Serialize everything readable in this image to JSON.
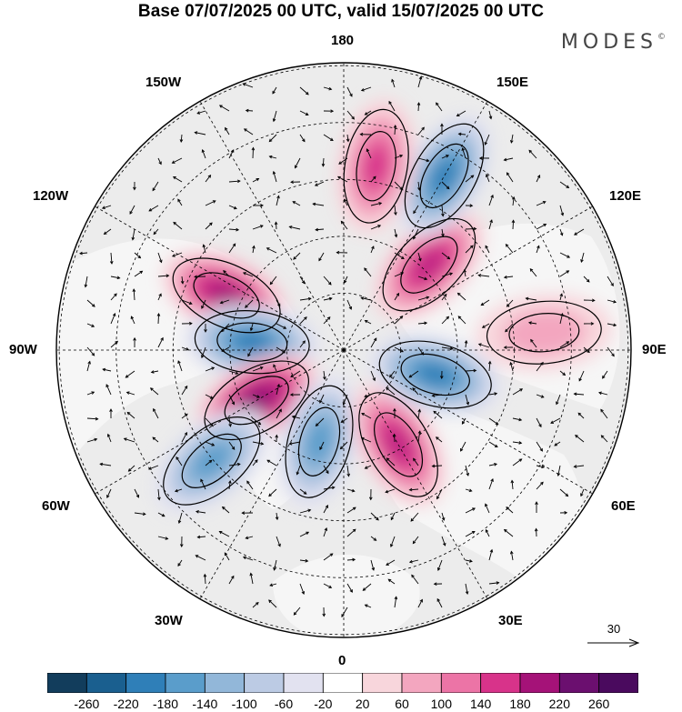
{
  "title": "Base 07/07/2025 00 UTC, valid 15/07/2025 00 UTC",
  "brand": "MODES",
  "brand_mark": "©",
  "longitude_labels": {
    "top": "180",
    "bottom": "0",
    "left": "90W",
    "right": "90E",
    "upper_left": "150W",
    "upper_right": "150E",
    "mid_upper_left": "120W",
    "mid_upper_right": "120E",
    "mid_lower_left": "60W",
    "mid_lower_right": "60E",
    "lower_left": "30W",
    "lower_right": "30E"
  },
  "reference_vector": {
    "value": "30",
    "icon": "arrow-right-icon"
  },
  "colorbar": {
    "ticks": [
      "-260",
      "-220",
      "-180",
      "-140",
      "-100",
      "-60",
      "-20",
      "20",
      "60",
      "100",
      "140",
      "180",
      "220",
      "260"
    ],
    "colors": [
      "#123d5c",
      "#1a5f8f",
      "#2f7fb8",
      "#5a9dcb",
      "#92b7d9",
      "#bccbe4",
      "#e2e2f0",
      "#ffffff",
      "#f8d6dc",
      "#f3a6bf",
      "#ec74a6",
      "#d8338a",
      "#a51278",
      "#6b0f6f",
      "#4a0a5e"
    ]
  },
  "anomaly_centers": [
    {
      "name": "canada-high",
      "lon": -115,
      "dist": 0.45,
      "sign": "positive",
      "level": 6
    },
    {
      "name": "hudson-low",
      "lon": -95,
      "dist": 0.32,
      "sign": "negative",
      "level": 5
    },
    {
      "name": "greenland-high",
      "lon": -60,
      "dist": 0.35,
      "sign": "positive",
      "level": 7
    },
    {
      "name": "atlantic-low",
      "lon": -50,
      "dist": 0.6,
      "sign": "negative",
      "level": 4
    },
    {
      "name": "iceland-low",
      "lon": -15,
      "dist": 0.33,
      "sign": "negative",
      "level": 4
    },
    {
      "name": "scandinavia-high",
      "lon": 30,
      "dist": 0.38,
      "sign": "positive",
      "level": 5
    },
    {
      "name": "west-siberia-low",
      "lon": 75,
      "dist": 0.33,
      "sign": "negative",
      "level": 5
    },
    {
      "name": "central-siberia-high",
      "lon": 135,
      "dist": 0.42,
      "sign": "positive",
      "level": 5
    },
    {
      "name": "east-siberia-low",
      "lon": 150,
      "dist": 0.7,
      "sign": "negative",
      "level": 5
    },
    {
      "name": "pacific-high",
      "lon": 170,
      "dist": 0.65,
      "sign": "positive",
      "level": 4
    },
    {
      "name": "siberia-east-high",
      "lon": 95,
      "dist": 0.7,
      "sign": "positive",
      "level": 2
    }
  ]
}
